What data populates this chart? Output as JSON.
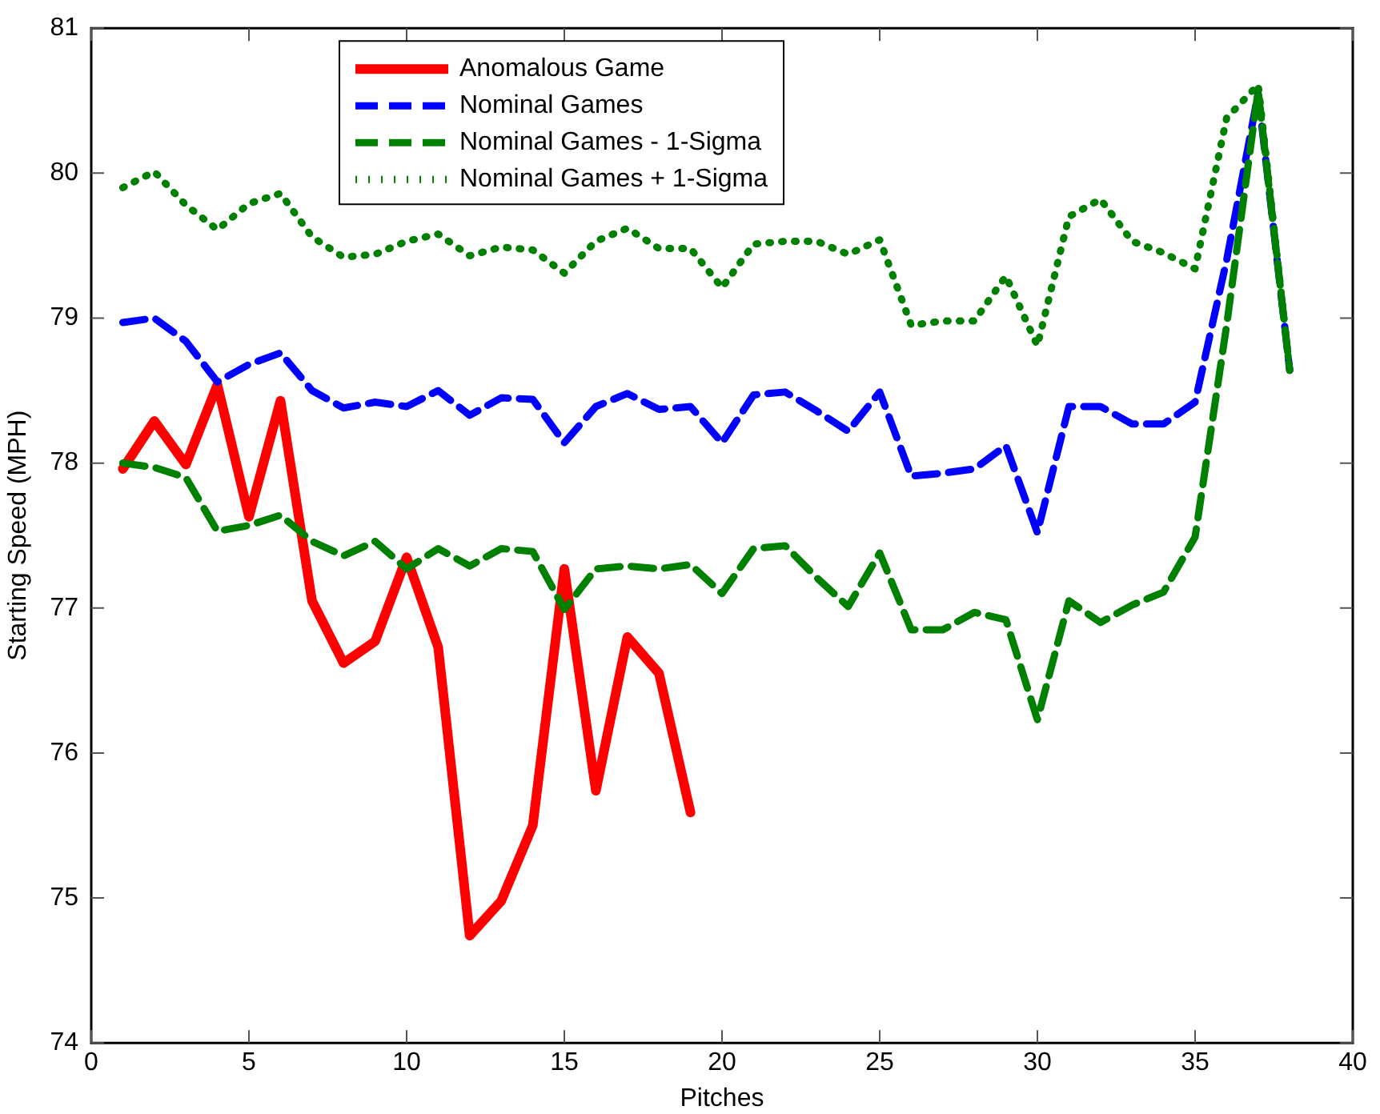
{
  "chart_data": {
    "type": "line",
    "xlabel": "Pitches",
    "ylabel": "Starting Speed (MPH)",
    "xlim": [
      0,
      40
    ],
    "xticks": [
      0,
      5,
      10,
      15,
      20,
      25,
      30,
      35,
      40
    ],
    "ylim": [
      74,
      81
    ],
    "yticks": [
      74,
      75,
      76,
      77,
      78,
      79,
      80,
      81
    ],
    "grid": false,
    "legend": "top left",
    "marker": "none",
    "series": [
      {
        "name": "Anomalous Game",
        "color": "#ff0000",
        "line_style": "solid",
        "x": [
          1,
          2,
          3,
          4,
          5,
          6,
          7,
          8,
          9,
          10,
          11,
          12,
          13,
          14,
          15,
          16,
          17,
          18,
          19
        ],
        "values": [
          77.96,
          78.29,
          77.99,
          78.54,
          77.63,
          78.43,
          77.05,
          76.62,
          76.77,
          77.35,
          76.73,
          74.74,
          74.98,
          75.5,
          77.27,
          75.74,
          76.8,
          76.55,
          75.59
        ]
      },
      {
        "name": "Nominal Games",
        "color": "#0000ff",
        "line_style": "dashed",
        "x": [
          1,
          2,
          3,
          4,
          5,
          6,
          7,
          8,
          9,
          10,
          11,
          12,
          13,
          14,
          15,
          16,
          17,
          18,
          19,
          20,
          21,
          22,
          23,
          24,
          25,
          26,
          27,
          28,
          29,
          30,
          31,
          32,
          33,
          34,
          35,
          36,
          37,
          38
        ],
        "values": [
          78.97,
          79.0,
          78.84,
          78.56,
          78.68,
          78.76,
          78.5,
          78.38,
          78.42,
          78.39,
          78.5,
          78.33,
          78.45,
          78.44,
          78.14,
          78.39,
          78.48,
          78.37,
          78.39,
          78.14,
          78.47,
          78.49,
          78.36,
          78.22,
          78.49,
          77.91,
          77.93,
          77.96,
          78.12,
          77.52,
          78.39,
          78.39,
          78.27,
          78.27,
          78.42,
          79.4,
          80.55,
          78.64
        ]
      },
      {
        "name": "Nominal Games - 1-Sigma",
        "color": "#008000",
        "line_style": "dashed",
        "x": [
          1,
          2,
          3,
          4,
          5,
          6,
          7,
          8,
          9,
          10,
          11,
          12,
          13,
          14,
          15,
          16,
          17,
          18,
          19,
          20,
          21,
          22,
          23,
          24,
          25,
          26,
          27,
          28,
          29,
          30,
          31,
          32,
          33,
          34,
          35,
          36,
          37,
          38
        ],
        "values": [
          78.0,
          77.97,
          77.9,
          77.53,
          77.57,
          77.64,
          77.46,
          77.36,
          77.46,
          77.27,
          77.41,
          77.29,
          77.41,
          77.39,
          76.99,
          77.27,
          77.29,
          77.27,
          77.3,
          77.1,
          77.41,
          77.43,
          77.21,
          77.01,
          77.38,
          76.85,
          76.85,
          76.97,
          76.92,
          76.23,
          77.05,
          76.9,
          77.02,
          77.11,
          77.49,
          78.95,
          80.57,
          78.64
        ]
      },
      {
        "name": "Nominal Games + 1-Sigma",
        "color": "#008000",
        "line_style": "dotted",
        "x": [
          1,
          2,
          3,
          4,
          5,
          6,
          7,
          8,
          9,
          10,
          11,
          12,
          13,
          14,
          15,
          16,
          17,
          18,
          19,
          20,
          21,
          22,
          23,
          24,
          25,
          26,
          27,
          28,
          29,
          30,
          31,
          32,
          33,
          34,
          35,
          36,
          37,
          38
        ],
        "values": [
          79.9,
          80.01,
          79.78,
          79.61,
          79.79,
          79.86,
          79.56,
          79.42,
          79.44,
          79.53,
          79.58,
          79.43,
          79.49,
          79.47,
          79.31,
          79.53,
          79.62,
          79.48,
          79.48,
          79.21,
          79.51,
          79.53,
          79.53,
          79.44,
          79.54,
          78.95,
          78.98,
          78.98,
          79.29,
          78.81,
          79.7,
          79.82,
          79.53,
          79.45,
          79.34,
          80.38,
          80.61,
          78.64
        ]
      }
    ]
  }
}
